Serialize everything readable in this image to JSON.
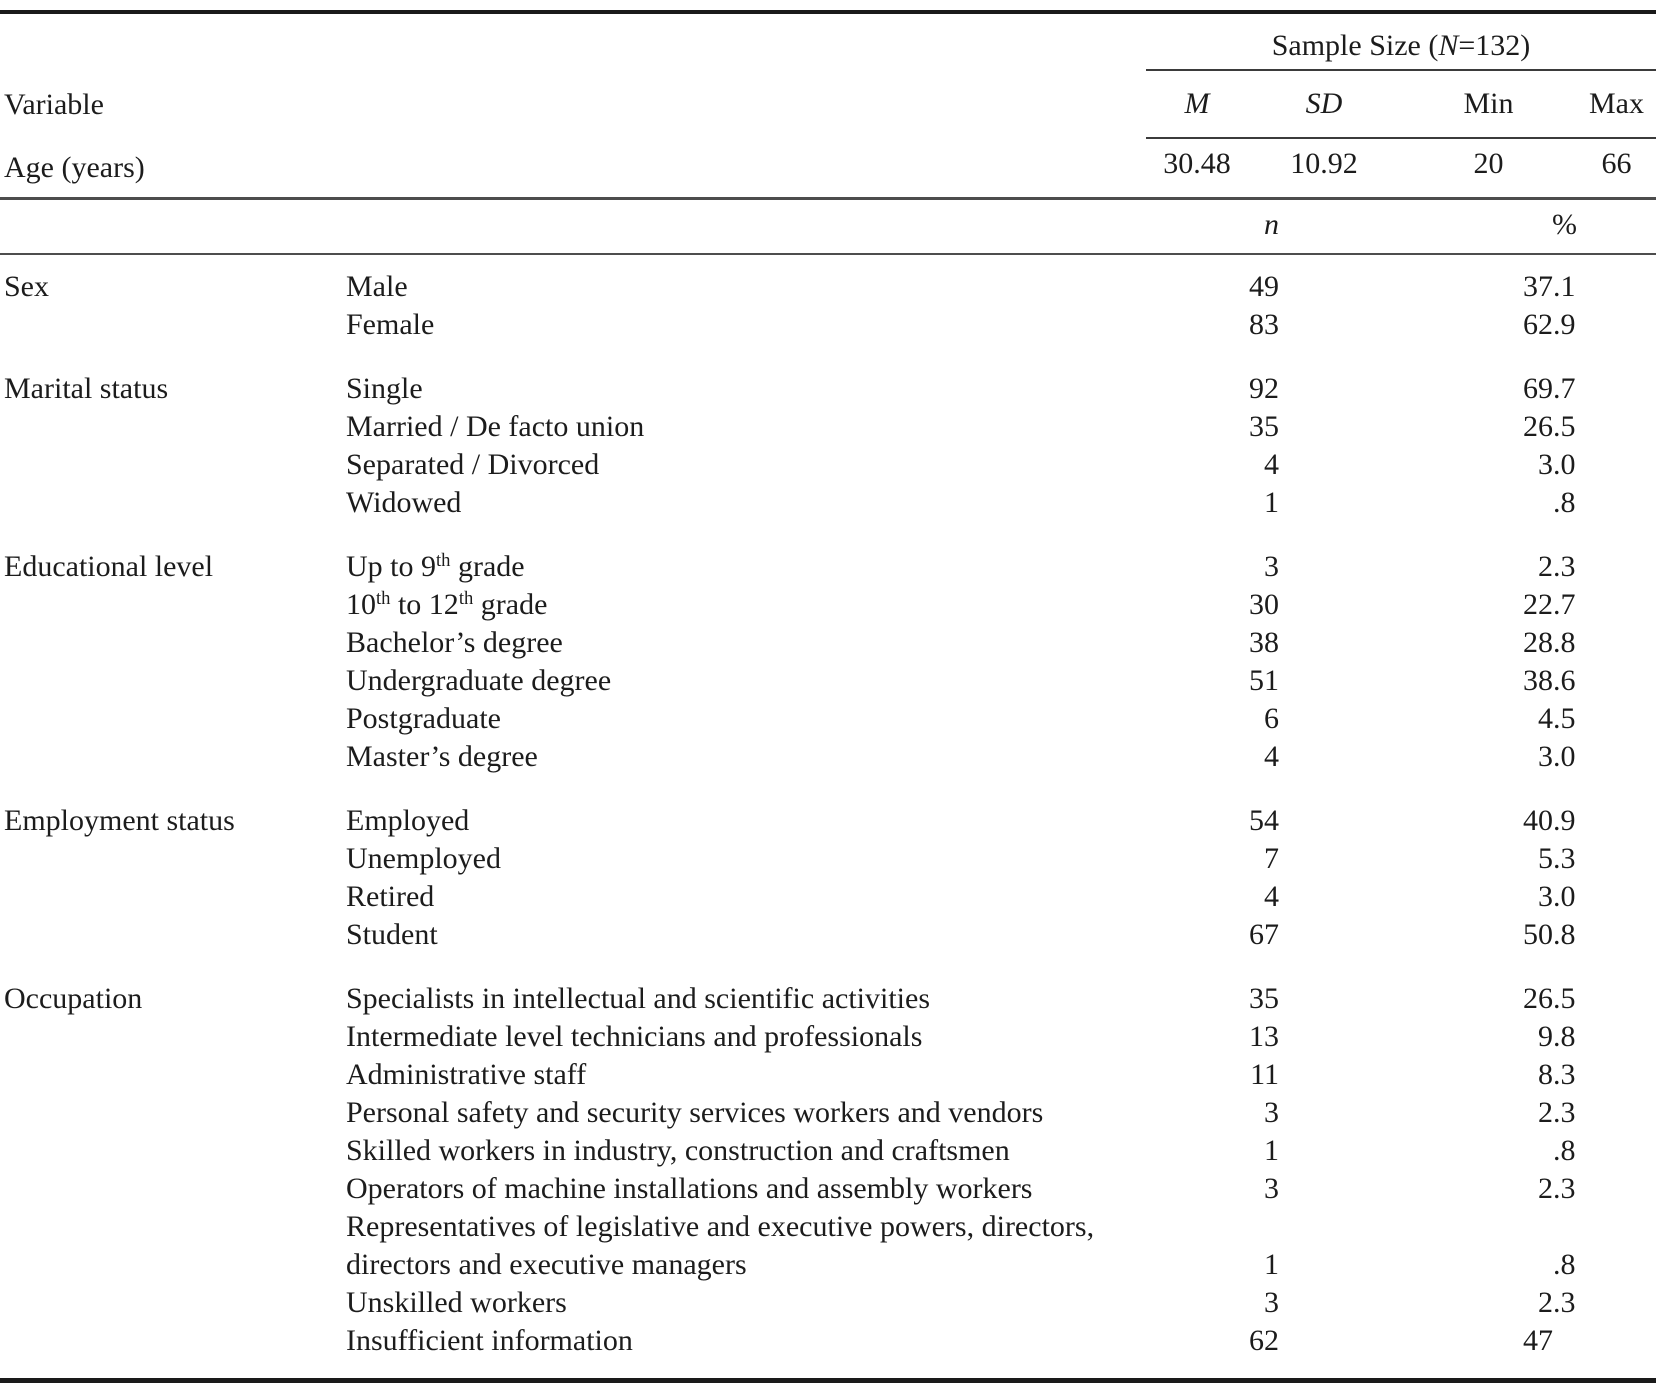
{
  "header": {
    "variable_label": "Variable",
    "sample_size_title": "Sample Size (*N*=132)",
    "stat_columns": [
      "*M*",
      "*SD*",
      "Min",
      "Max"
    ],
    "age_row": {
      "label": "Age (years)",
      "m": "30.48",
      "sd": "10.92",
      "min": "20",
      "max": "66"
    },
    "count_header": "*n*",
    "percent_header": "%"
  },
  "groups": [
    {
      "variable": "Sex",
      "rows": [
        {
          "label": "Male",
          "n": "49",
          "pct": "37.1"
        },
        {
          "label": "Female",
          "n": "83",
          "pct": "62.9"
        }
      ]
    },
    {
      "variable": "Marital status",
      "rows": [
        {
          "label": "Single",
          "n": "92",
          "pct": "69.7"
        },
        {
          "label": "Married / De facto union",
          "n": "35",
          "pct": "26.5"
        },
        {
          "label": "Separated / Divorced",
          "n": "4",
          "pct": "3.0"
        },
        {
          "label": "Widowed",
          "n": "1",
          "pct": ".8"
        }
      ]
    },
    {
      "variable": "Educational level",
      "rows": [
        {
          "label": "Up to 9^{th} grade",
          "n": "3",
          "pct": "2.3"
        },
        {
          "label": "10^{th} to 12^{th} grade",
          "n": "30",
          "pct": "22.7"
        },
        {
          "label": "Bachelor’s degree",
          "n": "38",
          "pct": "28.8"
        },
        {
          "label": "Undergraduate degree",
          "n": "51",
          "pct": "38.6"
        },
        {
          "label": "Postgraduate",
          "n": "6",
          "pct": "4.5"
        },
        {
          "label": "Master’s degree",
          "n": "4",
          "pct": "3.0"
        }
      ]
    },
    {
      "variable": "Employment status",
      "rows": [
        {
          "label": "Employed",
          "n": "54",
          "pct": "40.9"
        },
        {
          "label": "Unemployed",
          "n": "7",
          "pct": "5.3"
        },
        {
          "label": "Retired",
          "n": "4",
          "pct": "3.0"
        },
        {
          "label": "Student",
          "n": "67",
          "pct": "50.8"
        }
      ]
    },
    {
      "variable": "Occupation",
      "rows": [
        {
          "label": "Specialists in intellectual and scientific activities",
          "n": "35",
          "pct": "26.5"
        },
        {
          "label": "Intermediate level technicians and professionals",
          "n": "13",
          "pct": "9.8"
        },
        {
          "label": "Administrative staff",
          "n": "11",
          "pct": "8.3"
        },
        {
          "label": "Personal safety and security services workers and vendors",
          "n": "3",
          "pct": "2.3"
        },
        {
          "label": "Skilled workers in industry, construction and craftsmen",
          "n": "1",
          "pct": ".8"
        },
        {
          "label": "Operators of machine installations and assembly workers",
          "n": "3",
          "pct": "2.3"
        },
        {
          "label": "Representatives of legislative and executive powers, directors,\ndirectors and executive managers",
          "n": "1",
          "pct": ".8"
        },
        {
          "label": "Unskilled workers",
          "n": "3",
          "pct": "2.3"
        },
        {
          "label": "Insufficient information",
          "n": "62",
          "pct": "47"
        }
      ]
    }
  ]
}
